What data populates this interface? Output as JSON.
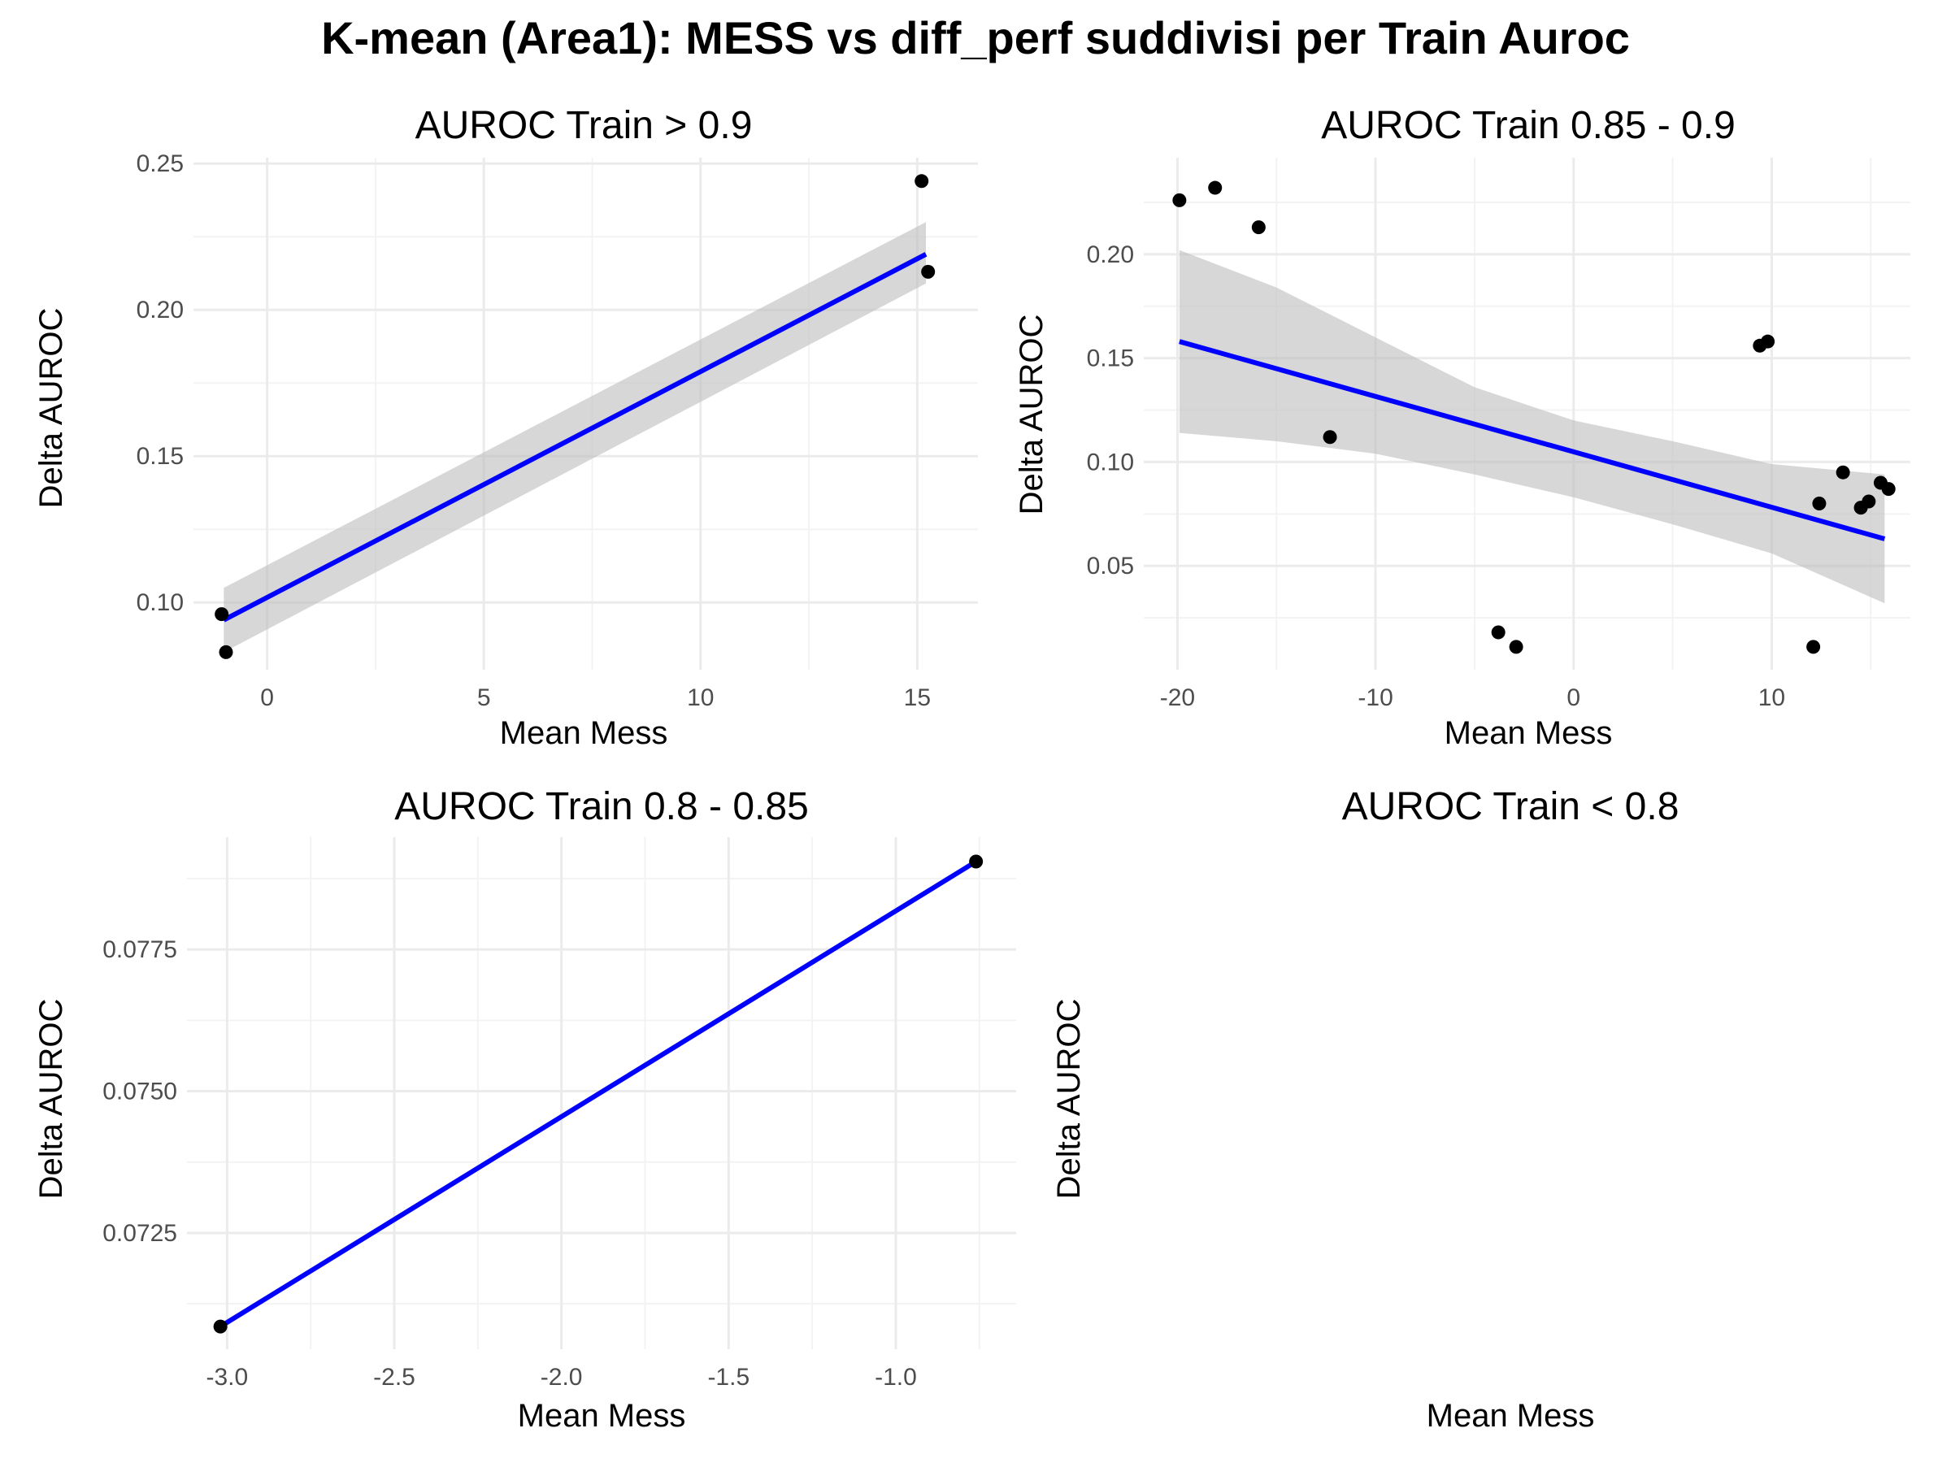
{
  "title": "K-mean (Area1): MESS vs diff_perf suddivisi per Train Auroc",
  "colors": {
    "points": "#000000",
    "fit_line": "#0000ff",
    "ci_band": "#bebebe",
    "grid_major": "#ebebeb",
    "grid_minor": "#f3f3f3",
    "tick_text": "#4d4d4d"
  },
  "chart_data": [
    {
      "type": "scatter",
      "title": "AUROC Train > 0.9",
      "xlabel": "Mean Mess",
      "ylabel": "Delta AUROC",
      "xlim": [
        -1.7,
        16.4
      ],
      "ylim": [
        0.077,
        0.252
      ],
      "xticks": [
        0,
        5,
        10,
        15
      ],
      "yticks": [
        0.1,
        0.15,
        0.2,
        0.25
      ],
      "ytick_labels": [
        "0.10",
        "0.15",
        "0.20",
        "0.25"
      ],
      "points": [
        {
          "x": -1.05,
          "y": 0.096
        },
        {
          "x": -0.95,
          "y": 0.083
        },
        {
          "x": 15.1,
          "y": 0.244
        },
        {
          "x": 15.25,
          "y": 0.213
        }
      ],
      "fit": {
        "x": [
          -1.0,
          15.2
        ],
        "y": [
          0.094,
          0.219
        ]
      },
      "ci_band": {
        "x": [
          -1.0,
          15.2
        ],
        "lower": [
          0.083,
          0.209
        ],
        "upper": [
          0.105,
          0.23
        ]
      },
      "grid": true
    },
    {
      "type": "scatter",
      "title": "AUROC Train 0.85 - 0.9",
      "xlabel": "Mean Mess",
      "ylabel": "Delta AUROC",
      "xlim": [
        -21.7,
        17.0
      ],
      "ylim": [
        0.0,
        0.2465
      ],
      "xticks": [
        -20,
        -10,
        0,
        10
      ],
      "yticks": [
        0.05,
        0.1,
        0.15,
        0.2
      ],
      "ytick_labels": [
        "0.05",
        "0.10",
        "0.15",
        "0.20"
      ],
      "points": [
        {
          "x": -19.9,
          "y": 0.226
        },
        {
          "x": -18.1,
          "y": 0.232
        },
        {
          "x": -15.9,
          "y": 0.213
        },
        {
          "x": -12.3,
          "y": 0.112
        },
        {
          "x": -3.8,
          "y": 0.018
        },
        {
          "x": -2.9,
          "y": 0.011
        },
        {
          "x": 9.4,
          "y": 0.156
        },
        {
          "x": 9.8,
          "y": 0.158
        },
        {
          "x": 12.1,
          "y": 0.011
        },
        {
          "x": 12.4,
          "y": 0.08
        },
        {
          "x": 13.6,
          "y": 0.095
        },
        {
          "x": 14.5,
          "y": 0.078
        },
        {
          "x": 14.9,
          "y": 0.081
        },
        {
          "x": 15.5,
          "y": 0.09
        },
        {
          "x": 15.9,
          "y": 0.087
        }
      ],
      "fit": {
        "x": [
          -19.9,
          15.7
        ],
        "y": [
          0.158,
          0.063
        ]
      },
      "ci_band": {
        "x": [
          -19.9,
          -15,
          -10,
          -5,
          0,
          5,
          10,
          15.7
        ],
        "lower": [
          0.114,
          0.11,
          0.104,
          0.094,
          0.083,
          0.07,
          0.056,
          0.032
        ],
        "upper": [
          0.202,
          0.184,
          0.16,
          0.136,
          0.12,
          0.11,
          0.099,
          0.094
        ]
      },
      "grid": true
    },
    {
      "type": "line",
      "title": "AUROC Train 0.8 - 0.85",
      "xlabel": "Mean Mess",
      "ylabel": "Delta AUROC",
      "xlim": [
        -3.12,
        -0.64
      ],
      "ylim": [
        0.07045,
        0.07948
      ],
      "xticks": [
        -3.0,
        -2.5,
        -2.0,
        -1.5,
        -1.0
      ],
      "xtick_labels": [
        "-3.0",
        "-2.5",
        "-2.0",
        "-1.5",
        "-1.0"
      ],
      "yticks": [
        0.0725,
        0.075,
        0.0775
      ],
      "ytick_labels": [
        "0.0725",
        "0.0750",
        "0.0775"
      ],
      "points": [
        {
          "x": -3.02,
          "y": 0.07085
        },
        {
          "x": -0.76,
          "y": 0.07905
        }
      ],
      "fit": {
        "x": [
          -3.02,
          -0.76
        ],
        "y": [
          0.07085,
          0.07905
        ]
      },
      "grid": true
    },
    {
      "type": "scatter",
      "title": "AUROC Train < 0.8",
      "xlabel": "Mean Mess",
      "ylabel": "Delta AUROC",
      "points": [],
      "grid": false
    }
  ]
}
